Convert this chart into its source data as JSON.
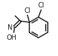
{
  "bg_color": "#ffffff",
  "bond_color": "#1a1a1a",
  "text_color": "#1a1a1a",
  "line_width": 1.1,
  "font_size": 7.0,
  "fig_width": 0.85,
  "fig_height": 0.83,
  "dpi": 100,
  "cl1_label": "Cl",
  "cl2_label": "Cl",
  "n_label": "N",
  "o_label": "OH"
}
